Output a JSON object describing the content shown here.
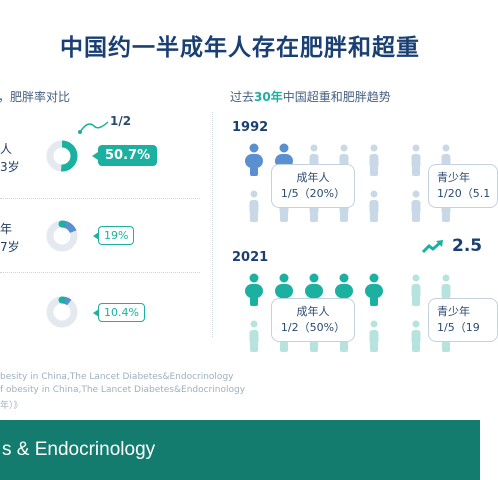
{
  "title": "中国约一半成年人存在肥胖和超重",
  "left": {
    "subtitle": "，肥胖率对比",
    "half_note": "1/2",
    "groups": [
      {
        "label_line1": "人",
        "label_line2": "3岁",
        "percent": "50.7%",
        "fraction": 0.507,
        "highlight": true
      },
      {
        "label_line1": "年",
        "label_line2": "7岁",
        "percent": "19%",
        "fraction": 0.19,
        "highlight": false
      },
      {
        "label_line1": "",
        "label_line2": "",
        "percent": "10.4%",
        "fraction": 0.104,
        "highlight": false
      }
    ]
  },
  "right": {
    "subtitle_pre": "过去",
    "subtitle_highlight": "30年",
    "subtitle_post": "中国超重和肥胖趋势",
    "year_1992": "1992",
    "year_2021": "2021",
    "box_1992_adult_title": "成年人",
    "box_1992_adult_value": "1/5（20%）",
    "box_1992_youth_title": "青少年",
    "box_1992_youth_value": "1/20（5.1",
    "box_2021_adult_title": "成年人",
    "box_2021_adult_value": "1/2（50%）",
    "box_2021_youth_title": "青少年",
    "box_2021_youth_value": "1/5（19",
    "trend_value": "2.5"
  },
  "sources": {
    "line1": "besity in China,The Lancet Diabetes&Endocrinology",
    "line2": "f obesity in China,The Lancet Diabetes&Endocrinology",
    "line3": "年）》"
  },
  "footer": {
    "text": "s & Endocrinology"
  },
  "colors": {
    "teal": "#1bb0a0",
    "navy": "#1a3f73",
    "light_blue": "#c9d8e6",
    "mid_blue": "#5a8fd0",
    "footer_bg": "#137c6f"
  }
}
